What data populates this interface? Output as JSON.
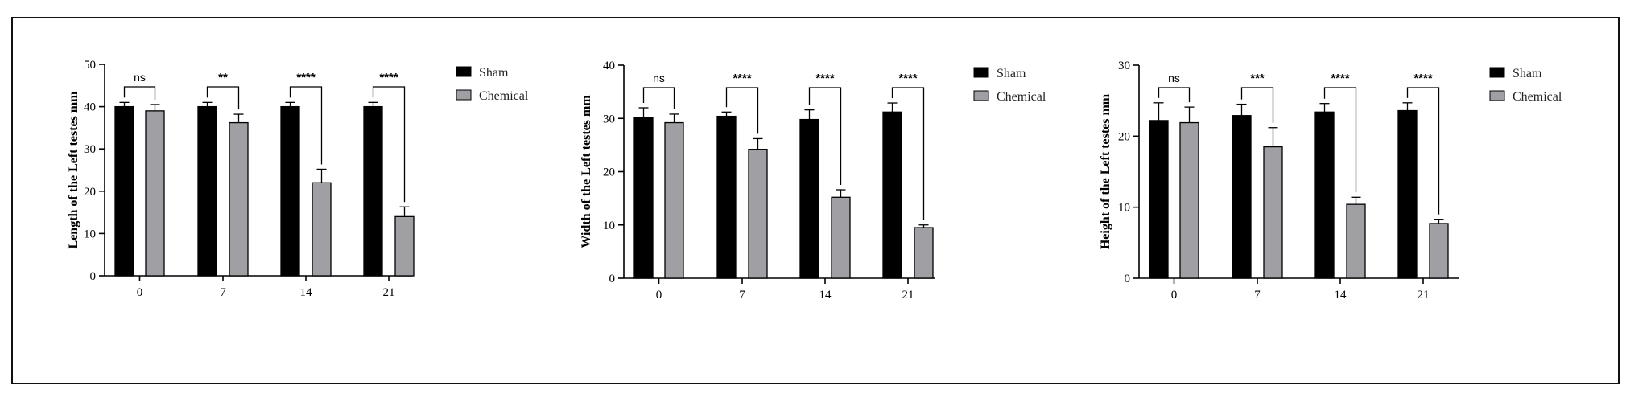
{
  "colors": {
    "sham": "#000000",
    "chemical": "#a0a0a4"
  },
  "legend": {
    "sham": "Sham",
    "chemical": "Chemical"
  },
  "chart_data": [
    {
      "type": "bar",
      "ylabel": "Length of the Left testes mm",
      "categories": [
        "0",
        "7",
        "14",
        "21"
      ],
      "yticks": [
        "0",
        "10",
        "20",
        "30",
        "40",
        "50"
      ],
      "ylim": [
        0,
        50
      ],
      "series": [
        {
          "name": "Sham",
          "values": [
            40,
            40,
            40,
            40
          ],
          "errors": [
            1,
            1,
            1,
            1
          ]
        },
        {
          "name": "Chemical",
          "values": [
            39,
            36.2,
            22,
            14
          ],
          "errors": [
            1.5,
            2,
            3.2,
            2.3
          ]
        }
      ],
      "significance": [
        "ns",
        "**",
        "****",
        "****"
      ],
      "legend_position": "top-right"
    },
    {
      "type": "bar",
      "ylabel": "Width of the Left testes mm",
      "categories": [
        "0",
        "7",
        "14",
        "21"
      ],
      "yticks": [
        "0",
        "10",
        "20",
        "30",
        "40"
      ],
      "ylim": [
        0,
        40
      ],
      "series": [
        {
          "name": "Sham",
          "values": [
            30.2,
            30.4,
            29.8,
            31.2
          ],
          "errors": [
            1.8,
            0.8,
            1.8,
            1.7
          ]
        },
        {
          "name": "Chemical",
          "values": [
            29.2,
            24.2,
            15.2,
            9.5
          ],
          "errors": [
            1.6,
            2,
            1.4,
            0.5
          ]
        }
      ],
      "significance": [
        "ns",
        "****",
        "****",
        "****"
      ],
      "legend_position": "top-right"
    },
    {
      "type": "bar",
      "ylabel": "Height of the Left testes mm",
      "categories": [
        "0",
        "7",
        "14",
        "21"
      ],
      "yticks": [
        "0",
        "10",
        "20",
        "30"
      ],
      "ylim": [
        0,
        30
      ],
      "series": [
        {
          "name": "Sham",
          "values": [
            22.2,
            22.9,
            23.4,
            23.6
          ],
          "errors": [
            2.5,
            1.6,
            1.2,
            1.1
          ]
        },
        {
          "name": "Chemical",
          "values": [
            21.9,
            18.5,
            10.4,
            7.7
          ],
          "errors": [
            2.2,
            2.7,
            1,
            0.6
          ]
        }
      ],
      "significance": [
        "ns",
        "***",
        "****",
        "****"
      ],
      "legend_position": "top-right"
    }
  ]
}
